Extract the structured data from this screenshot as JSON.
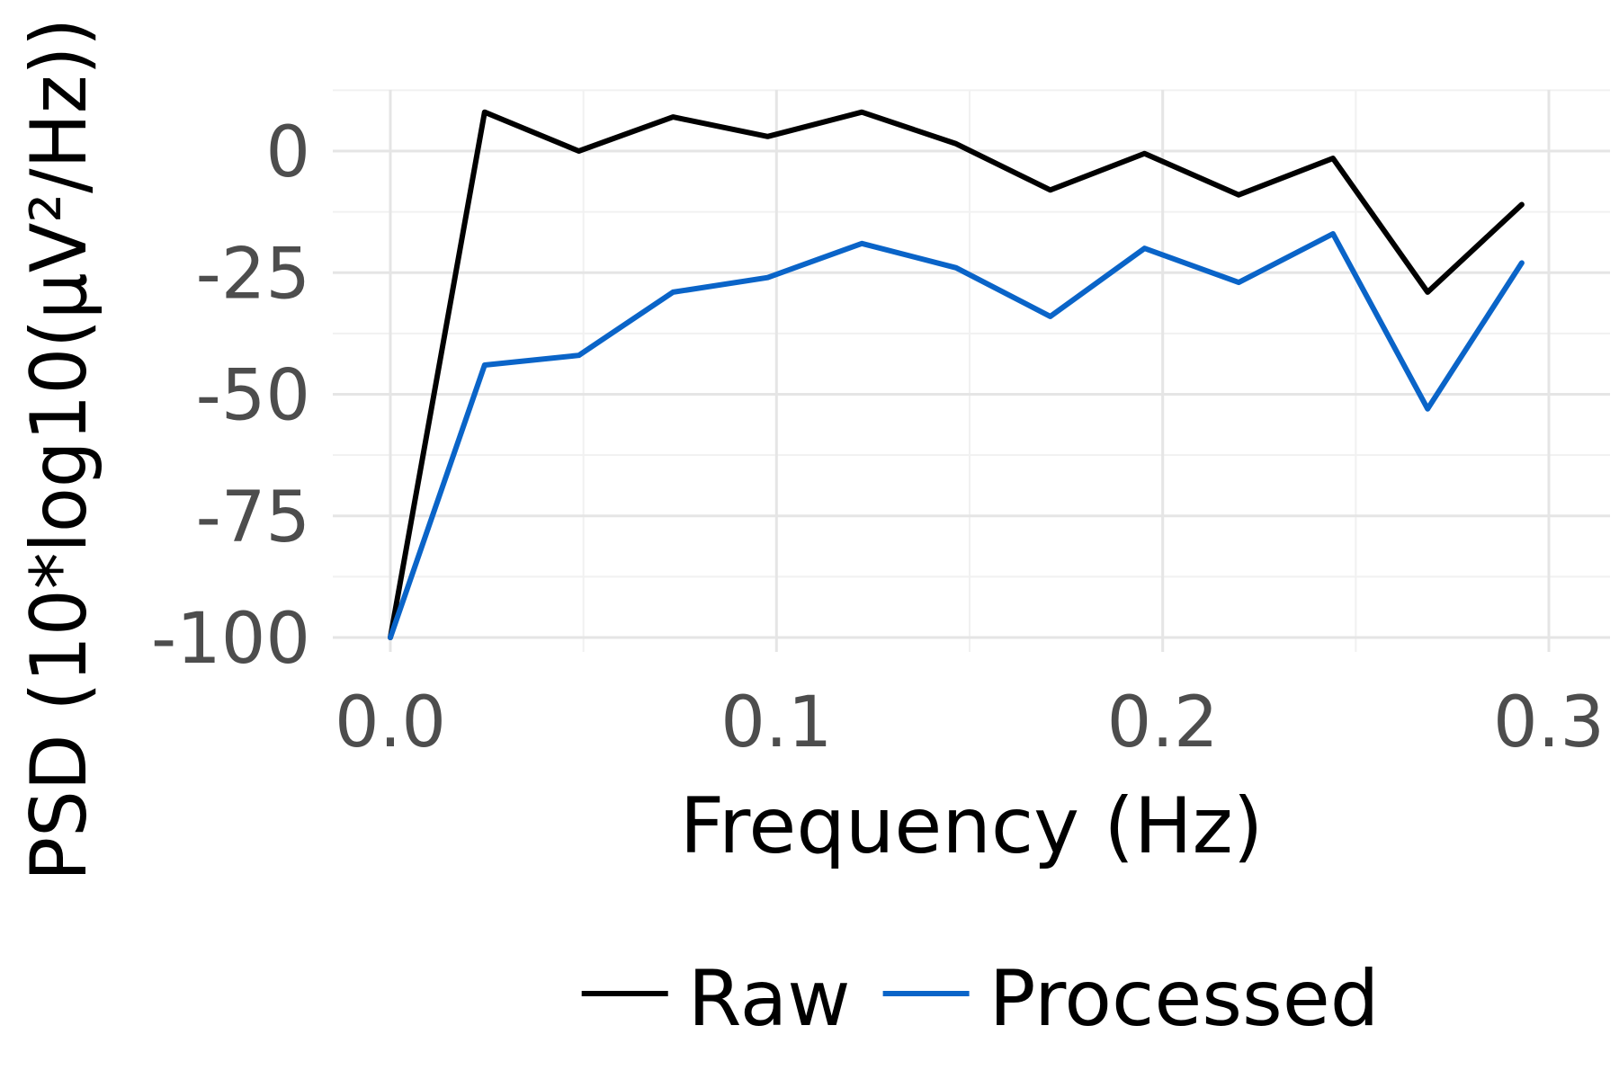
{
  "chart_data": {
    "type": "line",
    "title": "",
    "xlabel": "Frequency (Hz)",
    "ylabel": "PSD (10*log10(µV²/Hz))",
    "xlim": [
      0,
      0.3
    ],
    "ylim": [
      -100,
      10
    ],
    "x_ticks": [
      0.0,
      0.1,
      0.2,
      0.3
    ],
    "x_tick_labels": [
      "0.0",
      "0.1",
      "0.2",
      "0.3"
    ],
    "y_ticks": [
      0,
      -25,
      -50,
      -75,
      -100
    ],
    "y_tick_labels": [
      "0",
      "-25",
      "-50",
      "-75",
      "-100"
    ],
    "grid": true,
    "legend_position": "bottom",
    "x": [
      0.0,
      0.0244,
      0.0488,
      0.0732,
      0.0977,
      0.1221,
      0.1465,
      0.1709,
      0.1953,
      0.2197,
      0.2441,
      0.2686,
      0.293
    ],
    "series": [
      {
        "name": "Raw",
        "color": "#000000",
        "values": [
          -100,
          8,
          0,
          7,
          3,
          8,
          1.5,
          -8,
          -0.5,
          -9,
          -1.5,
          -29,
          -11
        ]
      },
      {
        "name": "Processed",
        "color": "#0a64c8",
        "values": [
          -100,
          -44,
          -42,
          -29,
          -26,
          -19,
          -24,
          -34,
          -20,
          -27,
          -17,
          -53,
          -23
        ]
      }
    ]
  }
}
